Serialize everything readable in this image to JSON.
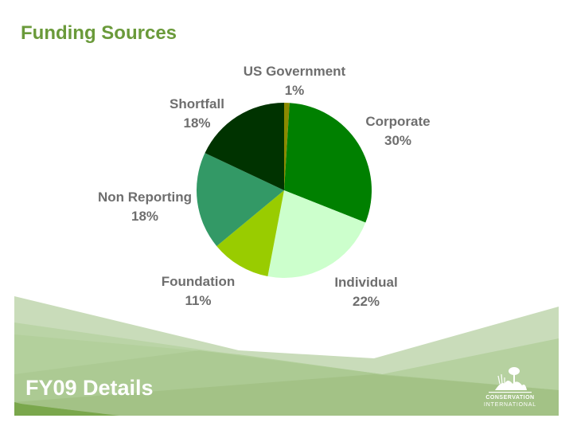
{
  "slide": {
    "title": "Funding Sources",
    "footer_title": "FY09  Details",
    "logo": {
      "line1": "CONSERVATION",
      "line2": "INTERNATIONAL"
    }
  },
  "labels": [
    {
      "name": "US Government",
      "pct": "1%"
    },
    {
      "name": "Corporate",
      "pct": "30%"
    },
    {
      "name": "Individual",
      "pct": "22%"
    },
    {
      "name": "Foundation",
      "pct": "11%"
    },
    {
      "name": "Non Reporting",
      "pct": "18%"
    },
    {
      "name": "Shortfall",
      "pct": "18%"
    }
  ],
  "colors": {
    "title": "#6a9a3a",
    "label": "#6e6e6e",
    "us_government": "#8a8a00",
    "corporate": "#008000",
    "individual": "#ccffcc",
    "foundation": "#99cc00",
    "non_reporting": "#339966",
    "shortfall": "#003300"
  },
  "chart_data": {
    "type": "pie",
    "title": "Funding Sources",
    "categories": [
      "US Government",
      "Corporate",
      "Individual",
      "Foundation",
      "Non Reporting",
      "Shortfall"
    ],
    "values": [
      1,
      30,
      22,
      11,
      18,
      18
    ],
    "colors": [
      "#8a8a00",
      "#008000",
      "#ccffcc",
      "#99cc00",
      "#339966",
      "#003300"
    ],
    "start_angle": "12 o'clock, clockwise",
    "legend": "none (data labels with category name and percent)"
  }
}
